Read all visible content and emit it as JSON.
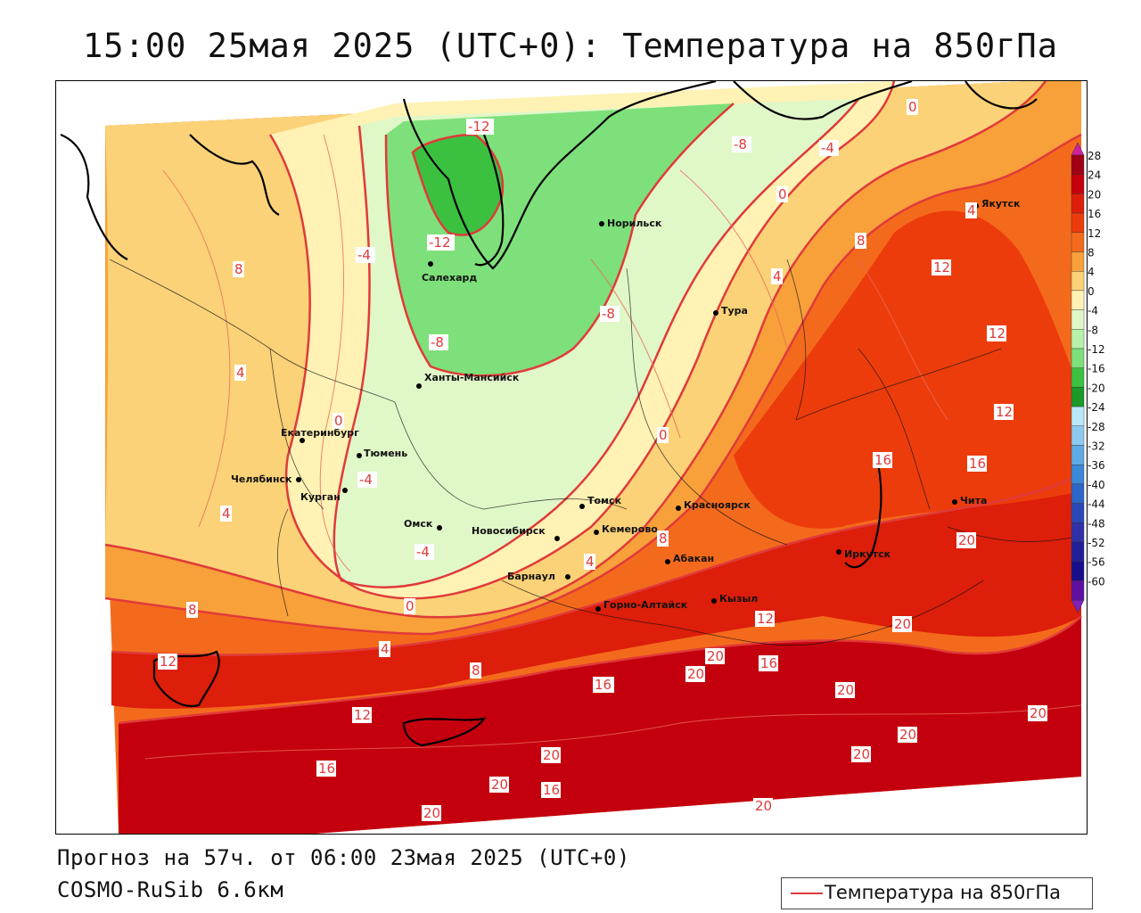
{
  "title": "15:00 25мая 2025 (UTC+0): Температура на 850гПа",
  "footer": {
    "forecast": "Прогноз на 57ч. от 06:00 23мая 2025 (UTC+0)",
    "model": "COSMO-RuSib 6.6км"
  },
  "legend": {
    "label": "Температура на 850гПа",
    "line_color": "#e03a3a"
  },
  "colorbar": {
    "ticks": [
      "28",
      "24",
      "20",
      "16",
      "12",
      "8",
      "4",
      "0",
      "-4",
      "-8",
      "-12",
      "-16",
      "-20",
      "-24",
      "-28",
      "-32",
      "-36",
      "-40",
      "-44",
      "-48",
      "-52",
      "-56",
      "-60"
    ],
    "colors": [
      "#a00014",
      "#c4000e",
      "#dc1e0a",
      "#ec3c0c",
      "#f46a1c",
      "#f8a03a",
      "#fbd278",
      "#fff2b4",
      "#e0f7c8",
      "#b8f0a8",
      "#7ee07a",
      "#3cc040",
      "#1a9a28",
      "#b8e8f8",
      "#8ccaf0",
      "#5eaae6",
      "#3c88d8",
      "#2c66c8",
      "#2a48b8",
      "#3030a8",
      "#221e9a",
      "#180e8c",
      "#6010a0"
    ],
    "top_arrow_color": "#d020a0",
    "bottom_arrow_color": "#8020c0"
  },
  "cities": [
    {
      "name": "Салехард"
    },
    {
      "name": "Норильск"
    },
    {
      "name": "Тура"
    },
    {
      "name": "Якутск"
    },
    {
      "name": "Ханты-Мансийск"
    },
    {
      "name": "Екатеринбург"
    },
    {
      "name": "Тюмень"
    },
    {
      "name": "Челябинск"
    },
    {
      "name": "Курган"
    },
    {
      "name": "Омск"
    },
    {
      "name": "Томск"
    },
    {
      "name": "Новосибирск"
    },
    {
      "name": "Кемерово"
    },
    {
      "name": "Красноярск"
    },
    {
      "name": "Барнаул"
    },
    {
      "name": "Абакан"
    },
    {
      "name": "Горно-Алтайск"
    },
    {
      "name": "Кызыл"
    },
    {
      "name": "Иркутск"
    },
    {
      "name": "Чита"
    }
  ],
  "isotherm_labels": [
    "-12",
    "-12",
    "-8",
    "-8",
    "-8",
    "-4",
    "-4",
    "-4",
    "-4",
    "0",
    "0",
    "0",
    "0",
    "0",
    "4",
    "4",
    "4",
    "4",
    "4",
    "4",
    "8",
    "8",
    "8",
    "8",
    "8",
    "12",
    "12",
    "12",
    "12",
    "12",
    "12",
    "16",
    "16",
    "16",
    "16",
    "16",
    "16",
    "16",
    "16",
    "20",
    "20",
    "20",
    "20",
    "20",
    "20",
    "20",
    "20",
    "20",
    "20",
    "20",
    "20"
  ]
}
